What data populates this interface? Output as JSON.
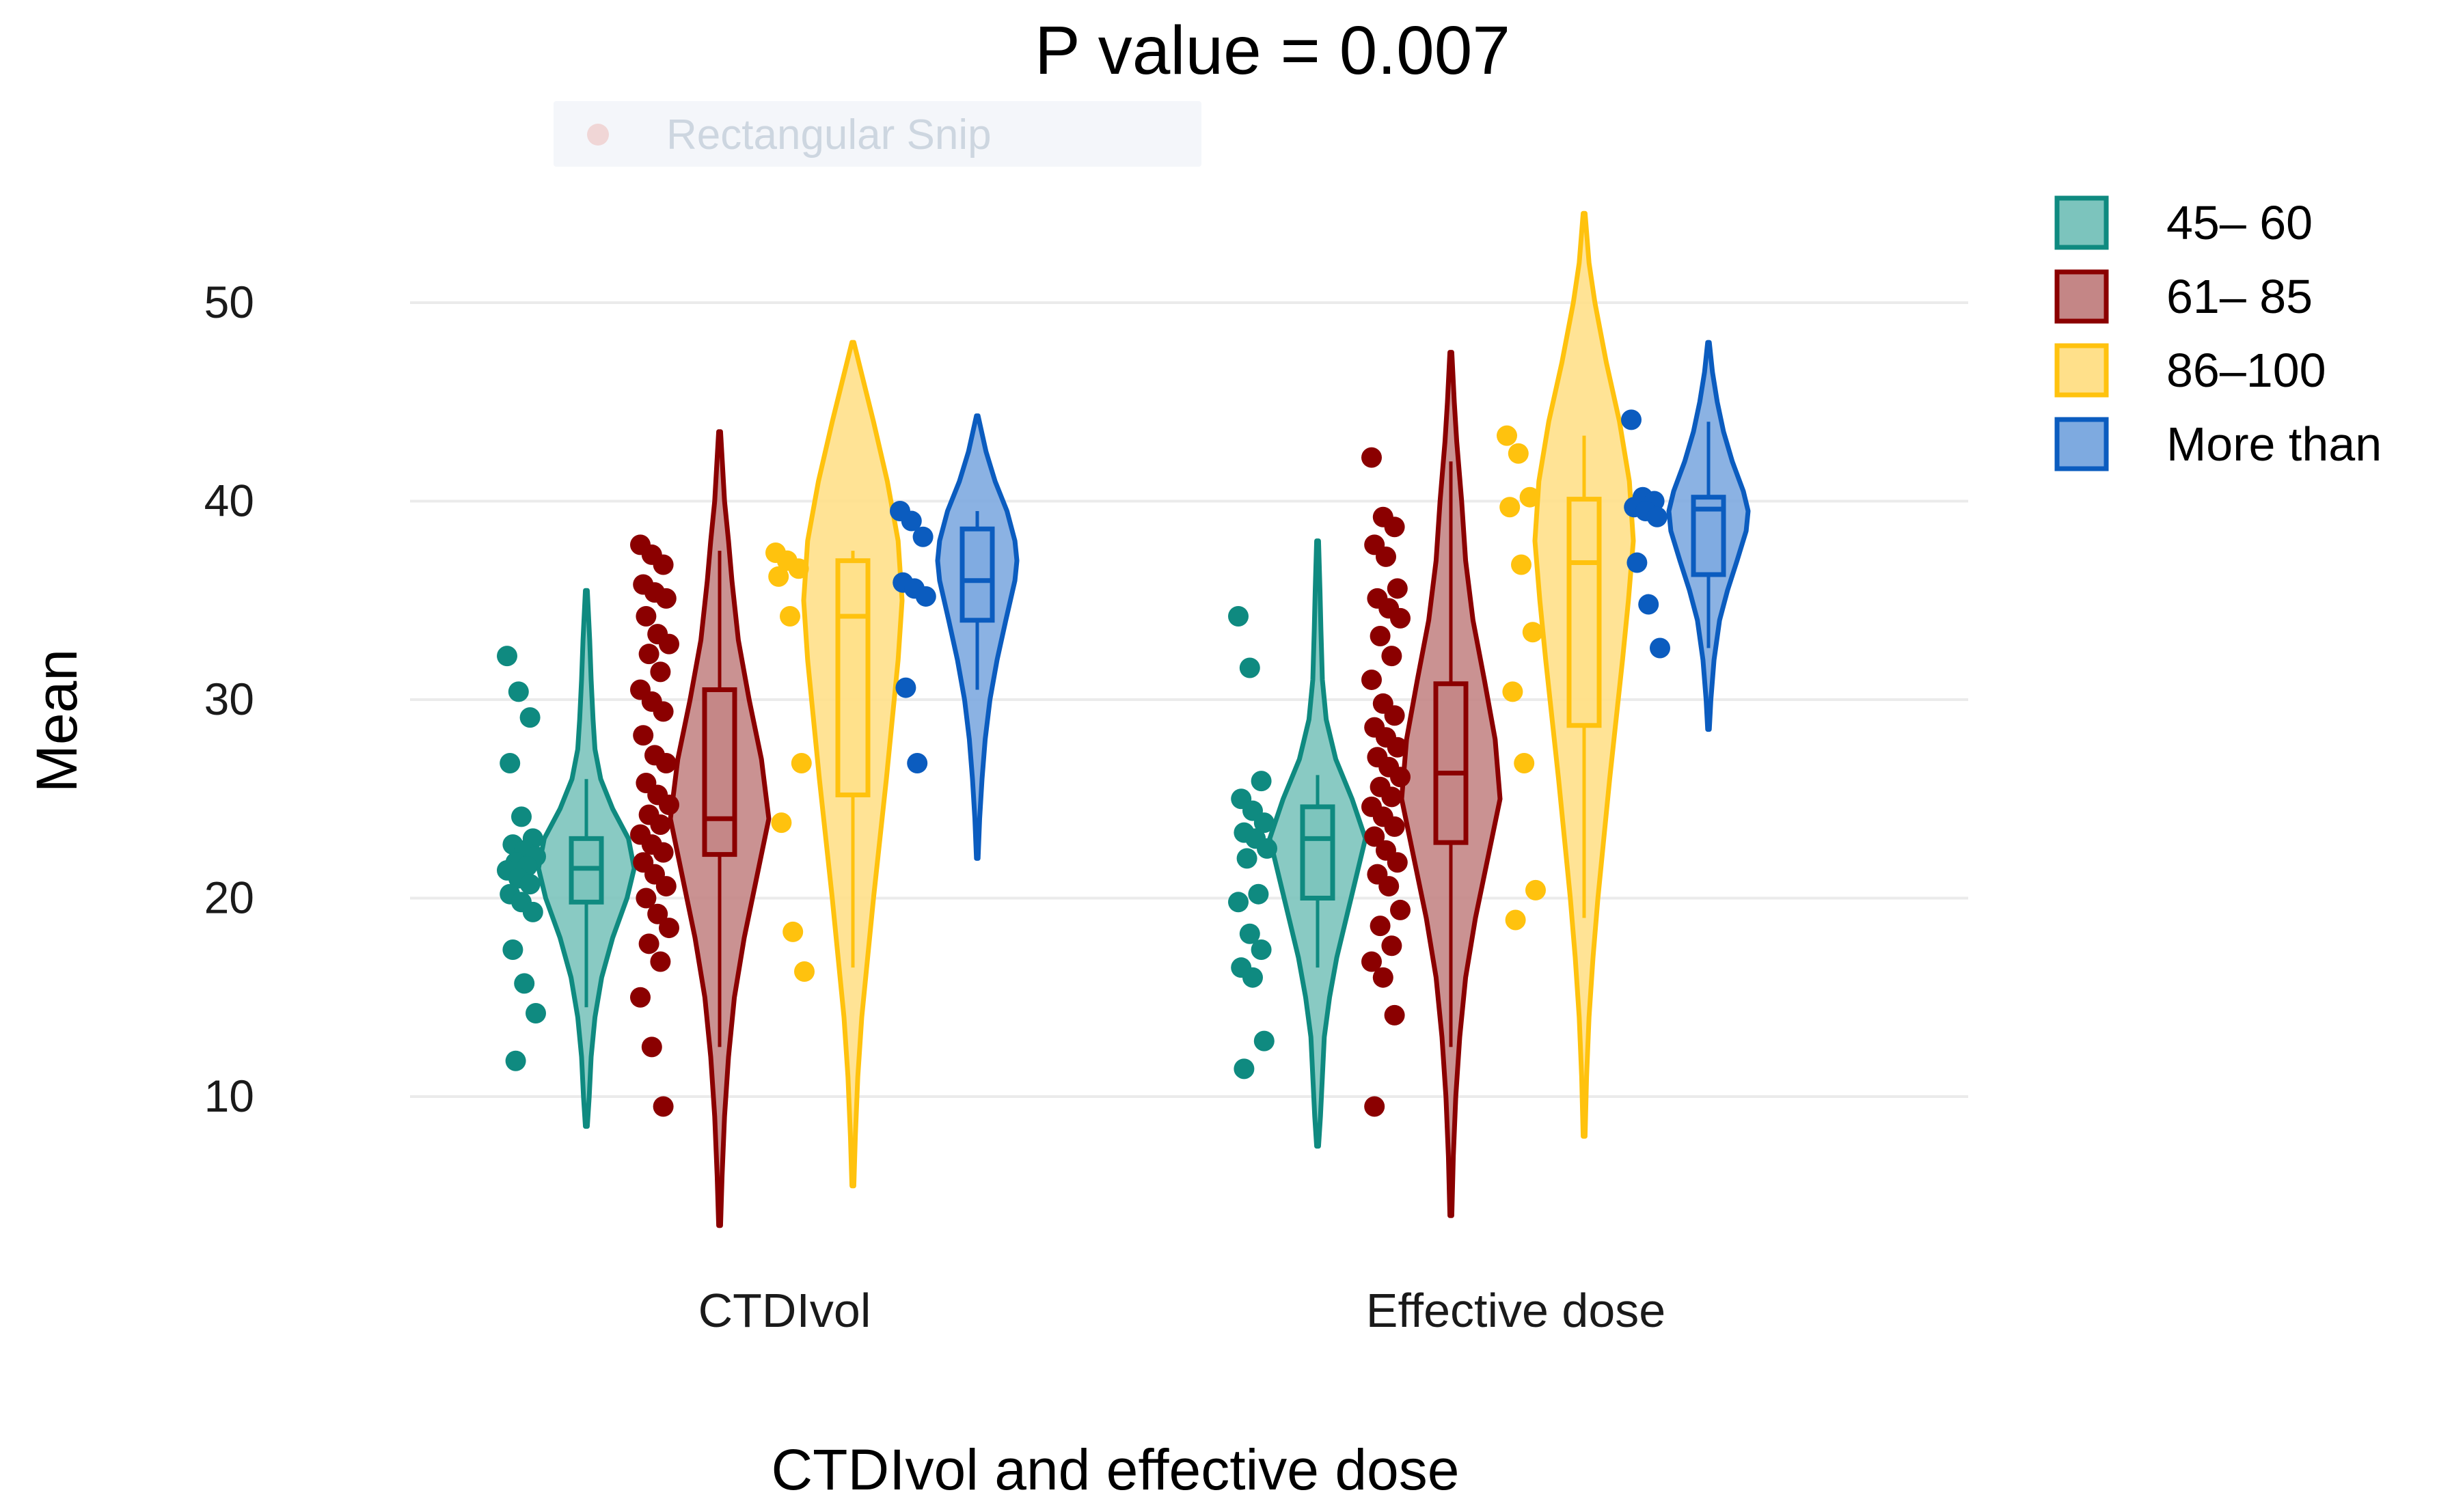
{
  "chart_data": {
    "type": "violin",
    "title": "P value = 0.007",
    "xlabel": "CTDIvol and effective dose",
    "ylabel": "Mean",
    "ylim": [
      2,
      56
    ],
    "y_ticks": [
      10,
      20,
      30,
      40,
      50
    ],
    "grid": true,
    "categories": [
      "CTDIvol",
      "Effective dose"
    ],
    "legend_position": "right",
    "overlay_text": "Rectangular Snip",
    "series": [
      {
        "name": "45– 60",
        "color": "#0f8a80",
        "fill": "#7cc4bd",
        "groups": [
          {
            "violin_range": [
              8.5,
              35.5
            ],
            "density": [
              [
                8.5,
                0.02
              ],
              [
                10,
                0.06
              ],
              [
                12,
                0.1
              ],
              [
                14,
                0.18
              ],
              [
                16,
                0.32
              ],
              [
                18,
                0.55
              ],
              [
                20,
                0.85
              ],
              [
                21.5,
                1.0
              ],
              [
                23,
                0.88
              ],
              [
                24.5,
                0.55
              ],
              [
                26,
                0.3
              ],
              [
                27.5,
                0.18
              ],
              [
                29,
                0.14
              ],
              [
                31,
                0.1
              ],
              [
                33,
                0.07
              ],
              [
                35.5,
                0.02
              ]
            ],
            "box": {
              "q1": 19.8,
              "median": 21.5,
              "q3": 23.0,
              "whisker_low": 14.5,
              "whisker_high": 26.0
            },
            "points": [
              32.2,
              30.4,
              29.1,
              26.8,
              24.1,
              23.0,
              22.7,
              22.4,
              22.1,
              21.8,
              21.6,
              21.4,
              21.0,
              20.7,
              20.2,
              19.8,
              19.3,
              17.4,
              15.7,
              14.2,
              11.8
            ]
          },
          {
            "violin_range": [
              7.5,
              38
            ],
            "density": [
              [
                7.5,
                0.02
              ],
              [
                9,
                0.06
              ],
              [
                11,
                0.1
              ],
              [
                13,
                0.14
              ],
              [
                15,
                0.25
              ],
              [
                17,
                0.4
              ],
              [
                19,
                0.6
              ],
              [
                21,
                0.8
              ],
              [
                23,
                1.0
              ],
              [
                25,
                0.72
              ],
              [
                27,
                0.38
              ],
              [
                29,
                0.18
              ],
              [
                31,
                0.1
              ],
              [
                33.5,
                0.07
              ],
              [
                35.5,
                0.05
              ],
              [
                38,
                0.02
              ]
            ],
            "box": {
              "q1": 20.0,
              "median": 23.0,
              "q3": 24.6,
              "whisker_low": 16.5,
              "whisker_high": 26.2
            },
            "points": [
              34.2,
              31.6,
              25.9,
              25.0,
              24.4,
              23.8,
              23.3,
              23.0,
              22.5,
              22.0,
              20.2,
              19.8,
              18.2,
              17.4,
              16.5,
              16.0,
              12.8,
              11.4
            ]
          }
        ]
      },
      {
        "name": "61– 85",
        "color": "#8b0000",
        "fill": "#c48686",
        "groups": [
          {
            "violin_range": [
              3.5,
              43.5
            ],
            "density": [
              [
                3.5,
                0.02
              ],
              [
                6,
                0.05
              ],
              [
                9,
                0.1
              ],
              [
                12,
                0.18
              ],
              [
                15,
                0.3
              ],
              [
                18,
                0.5
              ],
              [
                21,
                0.75
              ],
              [
                24,
                1.0
              ],
              [
                27,
                0.85
              ],
              [
                30,
                0.6
              ],
              [
                33,
                0.38
              ],
              [
                36,
                0.25
              ],
              [
                38,
                0.18
              ],
              [
                40,
                0.1
              ],
              [
                43.5,
                0.02
              ]
            ],
            "box": {
              "q1": 22.2,
              "median": 24.0,
              "q3": 30.5,
              "whisker_low": 12.5,
              "whisker_high": 37.5
            },
            "points": [
              37.8,
              37.3,
              36.8,
              35.8,
              35.4,
              35.1,
              34.2,
              33.3,
              32.8,
              32.3,
              31.4,
              30.5,
              29.9,
              29.4,
              28.2,
              27.2,
              26.8,
              25.8,
              25.2,
              24.7,
              24.2,
              23.7,
              23.2,
              22.7,
              22.3,
              21.8,
              21.2,
              20.6,
              20.0,
              19.2,
              18.5,
              17.7,
              16.8,
              15.0,
              12.5,
              9.5
            ]
          },
          {
            "violin_range": [
              4,
              47.5
            ],
            "density": [
              [
                4,
                0.02
              ],
              [
                7,
                0.05
              ],
              [
                10,
                0.1
              ],
              [
                13,
                0.18
              ],
              [
                16,
                0.3
              ],
              [
                19,
                0.5
              ],
              [
                22,
                0.75
              ],
              [
                25,
                1.0
              ],
              [
                28,
                0.9
              ],
              [
                31,
                0.68
              ],
              [
                34,
                0.45
              ],
              [
                37,
                0.3
              ],
              [
                40,
                0.22
              ],
              [
                43,
                0.12
              ],
              [
                45,
                0.07
              ],
              [
                47.5,
                0.02
              ]
            ],
            "box": {
              "q1": 22.8,
              "median": 26.3,
              "q3": 30.8,
              "whisker_low": 12.5,
              "whisker_high": 42.0
            },
            "points": [
              42.2,
              39.2,
              38.7,
              37.8,
              37.2,
              35.6,
              35.1,
              34.6,
              34.1,
              33.2,
              32.2,
              31.0,
              29.8,
              29.2,
              28.6,
              28.1,
              27.6,
              27.1,
              26.6,
              26.1,
              25.6,
              25.1,
              24.6,
              24.1,
              23.6,
              23.1,
              22.4,
              21.8,
              21.2,
              20.6,
              19.4,
              18.6,
              17.6,
              16.8,
              16.0,
              14.1,
              9.5
            ]
          }
        ]
      },
      {
        "name": "86–100",
        "color": "#ffc20e",
        "fill": "#ffe08a",
        "groups": [
          {
            "violin_range": [
              5.5,
              48
            ],
            "density": [
              [
                5.5,
                0.02
              ],
              [
                8,
                0.05
              ],
              [
                11,
                0.1
              ],
              [
                14,
                0.18
              ],
              [
                17,
                0.3
              ],
              [
                20,
                0.42
              ],
              [
                23,
                0.55
              ],
              [
                26,
                0.68
              ],
              [
                29,
                0.8
              ],
              [
                32,
                0.92
              ],
              [
                35,
                1.0
              ],
              [
                38,
                0.92
              ],
              [
                41,
                0.7
              ],
              [
                44,
                0.42
              ],
              [
                46,
                0.22
              ],
              [
                48,
                0.02
              ]
            ],
            "box": {
              "q1": 25.2,
              "median": 34.2,
              "q3": 37.0,
              "whisker_low": 16.5,
              "whisker_high": 37.5
            },
            "points": [
              37.4,
              37.0,
              36.6,
              36.2,
              34.2,
              26.8,
              23.8,
              18.3,
              16.3
            ]
          },
          {
            "violin_range": [
              8,
              54.5
            ],
            "density": [
              [
                8,
                0.02
              ],
              [
                11,
                0.05
              ],
              [
                14,
                0.1
              ],
              [
                17,
                0.18
              ],
              [
                20,
                0.28
              ],
              [
                23,
                0.4
              ],
              [
                26,
                0.52
              ],
              [
                29,
                0.65
              ],
              [
                32,
                0.78
              ],
              [
                35,
                0.9
              ],
              [
                38,
                1.0
              ],
              [
                41,
                0.92
              ],
              [
                44,
                0.72
              ],
              [
                47,
                0.45
              ],
              [
                50,
                0.22
              ],
              [
                52,
                0.1
              ],
              [
                54.5,
                0.02
              ]
            ],
            "box": {
              "q1": 28.7,
              "median": 36.9,
              "q3": 40.1,
              "whisker_low": 19.0,
              "whisker_high": 43.3
            },
            "points": [
              43.3,
              42.4,
              40.2,
              39.7,
              36.8,
              33.4,
              30.4,
              26.8,
              20.4,
              18.9
            ]
          }
        ]
      },
      {
        "name": "More than",
        "color": "#0b5cbf",
        "fill": "#7eaae0",
        "groups": [
          {
            "violin_range": [
              22,
              44.3
            ],
            "density": [
              [
                22,
                0.02
              ],
              [
                24,
                0.06
              ],
              [
                26,
                0.12
              ],
              [
                28,
                0.2
              ],
              [
                30,
                0.32
              ],
              [
                32,
                0.5
              ],
              [
                34,
                0.72
              ],
              [
                36,
                0.95
              ],
              [
                37,
                1.0
              ],
              [
                38,
                0.95
              ],
              [
                39.5,
                0.75
              ],
              [
                41,
                0.45
              ],
              [
                42.5,
                0.22
              ],
              [
                44.3,
                0.02
              ]
            ],
            "box": {
              "q1": 34.0,
              "median": 36.0,
              "q3": 38.6,
              "whisker_low": 30.5,
              "whisker_high": 39.5
            },
            "points": [
              39.5,
              39.0,
              38.2,
              35.9,
              35.6,
              35.2,
              30.6,
              26.8
            ]
          },
          {
            "violin_range": [
              28.5,
              48
            ],
            "density": [
              [
                28.5,
                0.02
              ],
              [
                30,
                0.06
              ],
              [
                32,
                0.14
              ],
              [
                34,
                0.28
              ],
              [
                35.5,
                0.48
              ],
              [
                37,
                0.72
              ],
              [
                38.5,
                0.95
              ],
              [
                39.5,
                1.0
              ],
              [
                40.5,
                0.88
              ],
              [
                42,
                0.6
              ],
              [
                43.5,
                0.38
              ],
              [
                45,
                0.22
              ],
              [
                46.5,
                0.1
              ],
              [
                48,
                0.02
              ]
            ],
            "box": {
              "q1": 36.3,
              "median": 39.6,
              "q3": 40.2,
              "whisker_low": 32.6,
              "whisker_high": 44.0
            },
            "points": [
              44.1,
              40.2,
              40.0,
              39.7,
              39.5,
              39.2,
              36.9,
              34.8,
              32.6
            ]
          }
        ]
      }
    ]
  }
}
